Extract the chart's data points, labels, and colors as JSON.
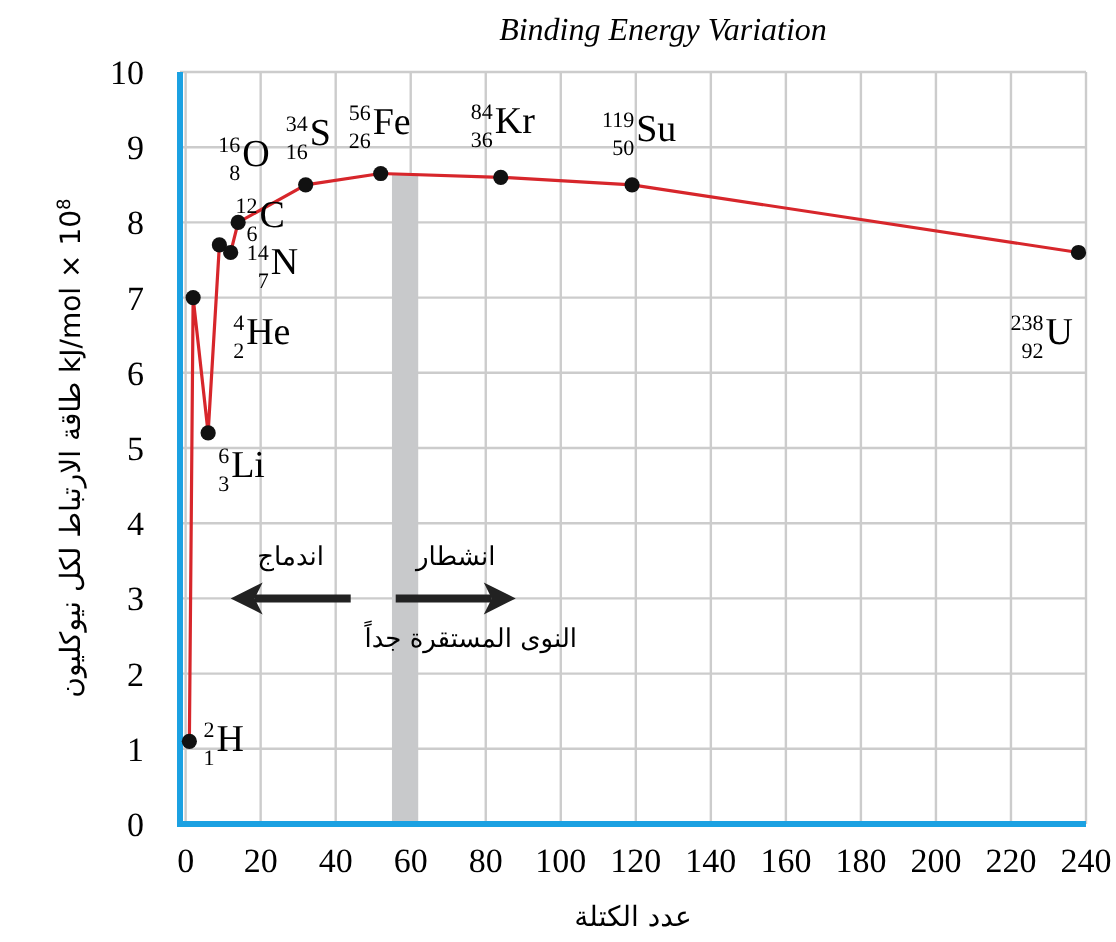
{
  "chart_data": {
    "type": "line",
    "title": "Binding Energy Variation",
    "xlabel": "عدد الكتلة",
    "ylabel": "طاقة الارتباط لكل نيوكليون kJ/mol × 10$^{8}$",
    "x": [
      1,
      2,
      6,
      9,
      12,
      14,
      32,
      52,
      84,
      119,
      238
    ],
    "series": [
      {
        "color": "#d7262b",
        "values": [
          1.1,
          7.0,
          5.2,
          7.7,
          7.6,
          8.0,
          8.5,
          8.65,
          8.6,
          8.5,
          7.6
        ]
      }
    ],
    "marker": "circle",
    "xlim": [
      -1.5,
      240
    ],
    "ylim": [
      0,
      10
    ],
    "xticks": [
      0,
      20,
      40,
      60,
      80,
      100,
      120,
      140,
      160,
      180,
      200,
      220,
      240
    ],
    "yticks": [
      0,
      1,
      2,
      3,
      4,
      5,
      6,
      7,
      8,
      9,
      10
    ],
    "grid": true,
    "bands": [
      {
        "axis": "x",
        "from": 55,
        "to": 62,
        "color": "#c8c9cb"
      }
    ],
    "annotations": [
      {
        "text": "$^{2}$$_{1}$H",
        "x": 1,
        "y": 1.1
      },
      {
        "text": "$^{4}$$_{2}$He",
        "x": 2,
        "y": 7.0
      },
      {
        "text": "$^{6}$$_{3}$Li",
        "x": 6,
        "y": 5.2
      },
      {
        "text": "$^{12}$$_{6}$C",
        "x": 9,
        "y": 7.7
      },
      {
        "text": "$^{14}$$_{7}$N",
        "x": 12,
        "y": 7.6
      },
      {
        "text": "$^{16}$$_{8}$O",
        "x": 14,
        "y": 8.0
      },
      {
        "text": "$^{34}$$_{16}$S",
        "x": 32,
        "y": 8.5
      },
      {
        "text": "$^{56}$$_{26}$Fe",
        "x": 52,
        "y": 8.65
      },
      {
        "text": "$^{84}$$_{36}$Kr",
        "x": 84,
        "y": 8.6
      },
      {
        "text": "$^{119}$$_{50}$Su",
        "x": 119,
        "y": 8.5
      },
      {
        "text": "$^{238}$$_{92}$U",
        "x": 238,
        "y": 7.6
      },
      "اندماج",
      "انشطار",
      "النوى المستقرة جداً"
    ]
  }
}
